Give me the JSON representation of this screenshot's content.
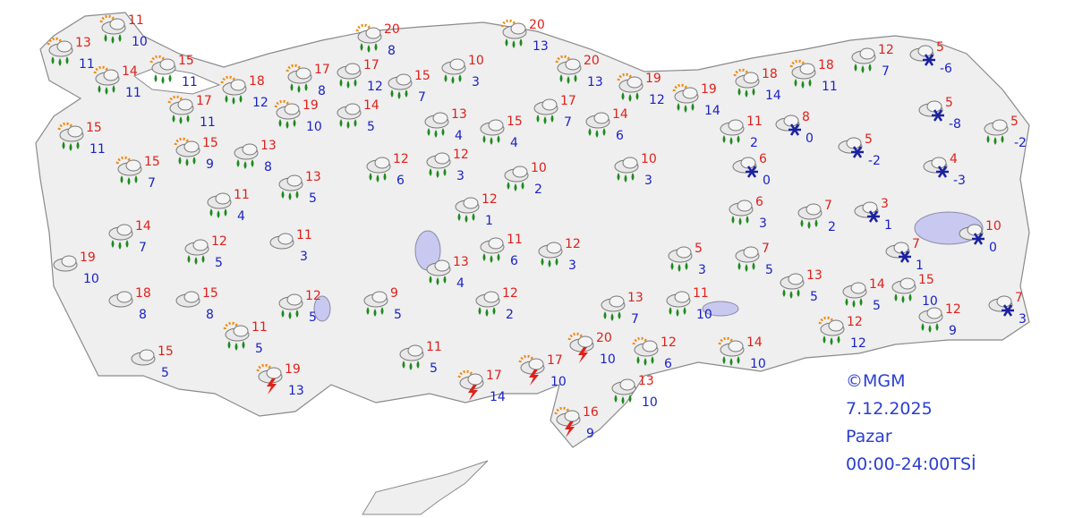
{
  "stations": [
    {
      "max": 13,
      "min": 11
    },
    {
      "max": 11,
      "min": 10
    },
    {
      "max": 14,
      "min": 11
    },
    {
      "max": 15,
      "min": 11
    },
    {
      "max": 17,
      "min": 11
    },
    {
      "max": 18,
      "min": 12
    },
    {
      "max": 15,
      "min": 11
    },
    {
      "max": 15,
      "min": 7
    },
    {
      "max": 15,
      "min": 9
    },
    {
      "max": 13,
      "min": 8
    },
    {
      "max": 11,
      "min": 4
    },
    {
      "max": 13,
      "min": 5
    },
    {
      "max": 14,
      "min": 7
    },
    {
      "max": 12,
      "min": 5
    },
    {
      "max": 11,
      "min": 3
    },
    {
      "max": 19,
      "min": 10
    },
    {
      "max": 18,
      "min": 8
    },
    {
      "max": 15,
      "min": 8
    },
    {
      "max": 12,
      "min": 5
    },
    {
      "max": 11,
      "min": 5
    },
    {
      "max": 15,
      "min": 5
    },
    {
      "max": 19,
      "min": 13
    },
    {
      "max": 17,
      "min": 8
    },
    {
      "max": 19,
      "min": 10
    },
    {
      "max": 17,
      "min": 12
    },
    {
      "max": 20,
      "min": 8
    },
    {
      "max": 15,
      "min": 7
    },
    {
      "max": 14,
      "min": 5
    },
    {
      "max": 10,
      "min": 3
    },
    {
      "max": 13,
      "min": 4
    },
    {
      "max": 12,
      "min": 6
    },
    {
      "max": 12,
      "min": 3
    },
    {
      "max": 20,
      "min": 13
    },
    {
      "max": 20,
      "min": 13
    },
    {
      "max": 17,
      "min": 7
    },
    {
      "max": 15,
      "min": 4
    },
    {
      "max": 14,
      "min": 6
    },
    {
      "max": 10,
      "min": 2
    },
    {
      "max": 12,
      "min": 1
    },
    {
      "max": 11,
      "min": 6
    },
    {
      "max": 12,
      "min": 3
    },
    {
      "max": 13,
      "min": 4
    },
    {
      "max": 12,
      "min": 2
    },
    {
      "max": 9,
      "min": 5
    },
    {
      "max": 11,
      "min": 5
    },
    {
      "max": 17,
      "min": 14
    },
    {
      "max": 17,
      "min": 10
    },
    {
      "max": 20,
      "min": 10
    },
    {
      "max": 16,
      "min": 9
    },
    {
      "max": 10,
      "min": 3
    },
    {
      "max": 19,
      "min": 12
    },
    {
      "max": 19,
      "min": 14
    },
    {
      "max": 13,
      "min": 7
    },
    {
      "max": 12,
      "min": 6
    },
    {
      "max": 13,
      "min": 10
    },
    {
      "max": 11,
      "min": 10
    },
    {
      "max": 5,
      "min": 3
    },
    {
      "max": 14,
      "min": 10
    },
    {
      "max": 7,
      "min": 5
    },
    {
      "max": 6,
      "min": 3
    },
    {
      "max": 18,
      "min": 14
    },
    {
      "max": 11,
      "min": 2
    },
    {
      "max": 8,
      "min": 0
    },
    {
      "max": 6,
      "min": 0
    },
    {
      "max": 18,
      "min": 11
    },
    {
      "max": 7,
      "min": 2
    },
    {
      "max": 13,
      "min": 5
    },
    {
      "max": 12,
      "min": 12
    },
    {
      "max": 5,
      "min": -2
    },
    {
      "max": 3,
      "min": 1
    },
    {
      "max": 7,
      "min": 1
    },
    {
      "max": 14,
      "min": 5
    },
    {
      "max": 15,
      "min": 10
    },
    {
      "max": 12,
      "min": 9
    },
    {
      "max": 7,
      "min": 3
    },
    {
      "max": 10,
      "min": 0
    },
    {
      "max": 4,
      "min": -3
    },
    {
      "max": 5,
      "min": -8
    },
    {
      "max": 5,
      "min": -2
    },
    {
      "max": 5,
      "min": -6
    },
    {
      "max": 12,
      "min": 7
    }
  ],
  "info": {
    "source": "©MGM",
    "date": "7.12.2025",
    "day": "Pazar",
    "period": "00:00-24:00TSİ"
  }
}
